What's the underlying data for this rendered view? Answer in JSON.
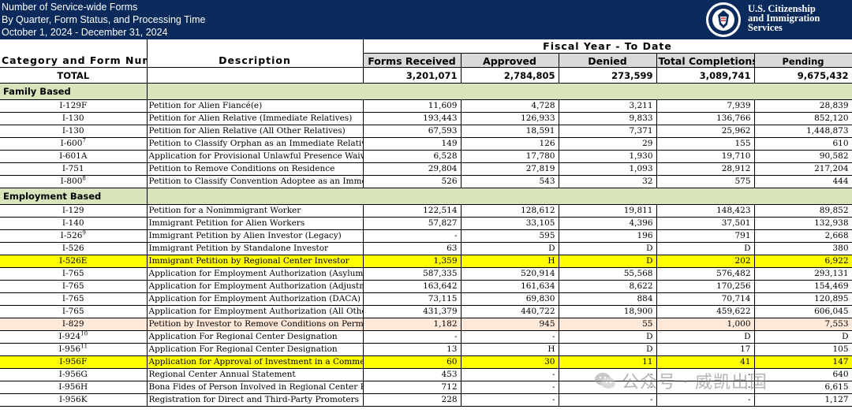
{
  "header": {
    "title": "Number of Service-wide Forms",
    "subtitle": "By Quarter, Form Status, and Processing Time",
    "date_range": "October 1, 2024 - December 31, 2024",
    "agency_line1": "U.S. Citizenship",
    "agency_line2": "and Immigration",
    "agency_line3": "Services"
  },
  "table": {
    "fiscal_header": "Fiscal Year - To Date",
    "col_category": "Category and Form Number",
    "col_description": "Description",
    "col_received": "Forms Received",
    "col_approved": "Approved",
    "col_denied": "Denied",
    "col_completions": "Total Completions",
    "col_pending": "Pending",
    "total": {
      "label": "TOTAL",
      "received": "3,201,071",
      "approved": "2,784,805",
      "denied": "273,599",
      "completions": "3,089,741",
      "pending": "9,675,432"
    },
    "sections": [
      {
        "name": "Family Based",
        "rows": [
          {
            "form": "I-129F",
            "sup": "",
            "desc": "Petition for Alien Fiancé(e)",
            "received": "11,609",
            "approved": "4,728",
            "denied": "3,211",
            "completions": "7,939",
            "pending": "28,839",
            "hl": ""
          },
          {
            "form": "I-130",
            "sup": "",
            "desc": "Petition for Alien Relative (Immediate Relatives)",
            "received": "193,443",
            "approved": "126,933",
            "denied": "9,833",
            "completions": "136,766",
            "pending": "852,120",
            "hl": ""
          },
          {
            "form": "I-130",
            "sup": "",
            "desc": "Petition for Alien Relative (All Other Relatives)",
            "received": "67,593",
            "approved": "18,591",
            "denied": "7,371",
            "completions": "25,962",
            "pending": "1,448,873",
            "hl": ""
          },
          {
            "form": "I-600",
            "sup": "7",
            "desc": "Petition to Classify Orphan as an Immediate Relative",
            "received": "149",
            "approved": "126",
            "denied": "29",
            "completions": "155",
            "pending": "610",
            "hl": ""
          },
          {
            "form": "I-601A",
            "sup": "",
            "desc": "Application for Provisional Unlawful Presence Waiver",
            "received": "6,528",
            "approved": "17,780",
            "denied": "1,930",
            "completions": "19,710",
            "pending": "90,582",
            "hl": ""
          },
          {
            "form": "I-751",
            "sup": "",
            "desc": "Petition to Remove Conditions on Residence",
            "received": "29,804",
            "approved": "27,819",
            "denied": "1,093",
            "completions": "28,912",
            "pending": "217,204",
            "hl": ""
          },
          {
            "form": "I-800",
            "sup": "8",
            "desc": "Petition to Classify Convention Adoptee as an Immediate Relative",
            "received": "526",
            "approved": "543",
            "denied": "32",
            "completions": "575",
            "pending": "444",
            "hl": ""
          }
        ]
      },
      {
        "name": "Employment Based",
        "rows": [
          {
            "form": "I-129",
            "sup": "",
            "desc": "Petition for a Nonimmigrant Worker",
            "received": "122,514",
            "approved": "128,612",
            "denied": "19,811",
            "completions": "148,423",
            "pending": "89,852",
            "hl": ""
          },
          {
            "form": "I-140",
            "sup": "",
            "desc": "Immigrant Petition for Alien Workers",
            "received": "57,827",
            "approved": "33,105",
            "denied": "4,396",
            "completions": "37,501",
            "pending": "132,938",
            "hl": ""
          },
          {
            "form": "I-526",
            "sup": "9",
            "desc": "Immigrant Petition by Alien Investor (Legacy)",
            "received": "-",
            "approved": "595",
            "denied": "196",
            "completions": "791",
            "pending": "2,668",
            "hl": ""
          },
          {
            "form": "I-526",
            "sup": "",
            "desc": "Immigrant Petition by Standalone Investor",
            "received": "63",
            "approved": "D",
            "denied": "D",
            "completions": "D",
            "pending": "380",
            "hl": ""
          },
          {
            "form": "I-526E",
            "sup": "",
            "desc": "Immigrant Petition by Regional Center Investor",
            "received": "1,359",
            "approved": "H",
            "denied": "D",
            "completions": "202",
            "pending": "6,922",
            "hl": "yellow"
          },
          {
            "form": "I-765",
            "sup": "",
            "desc": "Application for Employment Authorization (Asylum)",
            "received": "587,335",
            "approved": "520,914",
            "denied": "55,568",
            "completions": "576,482",
            "pending": "293,131",
            "hl": ""
          },
          {
            "form": "I-765",
            "sup": "",
            "desc": "Application for Employment Authorization (Adjustment)",
            "received": "163,642",
            "approved": "161,634",
            "denied": "8,622",
            "completions": "170,256",
            "pending": "154,469",
            "hl": ""
          },
          {
            "form": "I-765",
            "sup": "",
            "desc": "Application for Employment Authorization (DACA)",
            "received": "73,115",
            "approved": "69,830",
            "denied": "884",
            "completions": "70,714",
            "pending": "120,895",
            "hl": ""
          },
          {
            "form": "I-765",
            "sup": "",
            "desc": "Application for Employment Authorization (All Other)",
            "received": "431,379",
            "approved": "440,722",
            "denied": "18,900",
            "completions": "459,622",
            "pending": "606,045",
            "hl": ""
          },
          {
            "form": "I-829",
            "sup": "",
            "desc": "Petition by Investor to Remove Conditions on Permanent Resident Status",
            "received": "1,182",
            "approved": "945",
            "denied": "55",
            "completions": "1,000",
            "pending": "7,553",
            "hl": "peach"
          },
          {
            "form": "I-924",
            "sup": "10",
            "desc": "Application For Regional Center Designation",
            "received": "-",
            "approved": "-",
            "denied": "D",
            "completions": "D",
            "pending": "D",
            "hl": ""
          },
          {
            "form": "I-956",
            "sup": "11",
            "desc": "Application For Regional Center Designation",
            "received": "13",
            "approved": "H",
            "denied": "D",
            "completions": "17",
            "pending": "105",
            "hl": ""
          },
          {
            "form": "I-956F",
            "sup": "",
            "desc": "Application for Approval of Investment in a Commercial Enterprise",
            "received": "60",
            "approved": "30",
            "denied": "11",
            "completions": "41",
            "pending": "147",
            "hl": "yellow"
          },
          {
            "form": "I-956G",
            "sup": "",
            "desc": "Regional Center Annual Statement",
            "received": "453",
            "approved": "-",
            "denied": "-",
            "completions": "-",
            "pending": "640",
            "hl": ""
          },
          {
            "form": "I-956H",
            "sup": "",
            "desc": "Bona Fides of Person Involved in Regional Center Program",
            "received": "712",
            "approved": "-",
            "denied": "-",
            "completions": "-",
            "pending": "6,615",
            "hl": ""
          },
          {
            "form": "I-956K",
            "sup": "",
            "desc": "Registration for Direct and Third-Party Promoters",
            "received": "228",
            "approved": "-",
            "denied": "-",
            "completions": "-",
            "pending": "1,127",
            "hl": ""
          }
        ]
      }
    ]
  },
  "watermark": {
    "text": "公众号 · 威凯出国",
    "icon": "wechat-icon"
  },
  "colors": {
    "header_bg": "#0a2a5c",
    "section_bg": "#d8e4bc",
    "highlight_yellow": "#ffff00",
    "highlight_peach": "#fde9d9",
    "column_header_bg": "#d9d9d9"
  }
}
